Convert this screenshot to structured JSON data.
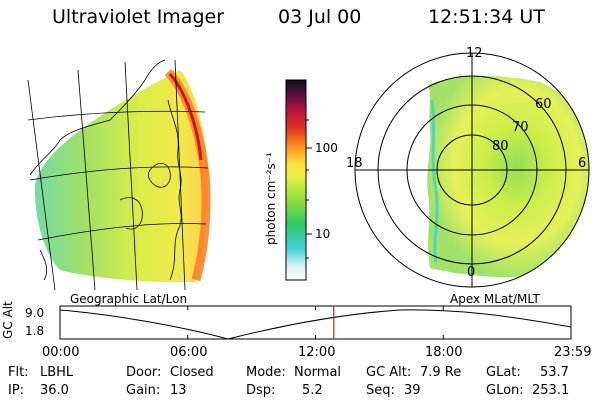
{
  "header": {
    "title": "Ultraviolet Imager",
    "date": "03 Jul 00",
    "time": "12:51:34 UT"
  },
  "geo_panel": {
    "label": "Geographic Lat/Lon"
  },
  "polar_panel": {
    "label": "Apex MLat/MLT",
    "mlt_labels": [
      "12",
      "18",
      "6",
      "0"
    ],
    "lat_labels": [
      "60",
      "70",
      "80"
    ]
  },
  "colorbar": {
    "label": "photon cm⁻²s⁻¹",
    "ticks": [
      "100",
      "10"
    ]
  },
  "timeline": {
    "ylabel": "GC Alt",
    "y_ticks": [
      "9.0",
      "1.8"
    ],
    "x_ticks": [
      "00:00",
      "06:00",
      "12:00",
      "18:00",
      "23:59"
    ],
    "current_time_hours": 12.86
  },
  "footer": {
    "flt_label": "Flt:",
    "flt_value": "LBHL",
    "ip_label": "IP:",
    "ip_value": "36.0",
    "door_label": "Door:",
    "door_value": "Closed",
    "gain_label": "Gain:",
    "gain_value": "13",
    "mode_label": "Mode:",
    "mode_value": "Normal",
    "dsp_label": "Dsp:",
    "dsp_value": "5.2",
    "gcalt_label": "GC Alt:",
    "gcalt_value": "7.9 Re",
    "seq_label": "Seq:",
    "seq_value": "39",
    "glat_label": "GLat:",
    "glat_value": "53.7",
    "glon_label": "GLon:",
    "glon_value": "253.1"
  }
}
